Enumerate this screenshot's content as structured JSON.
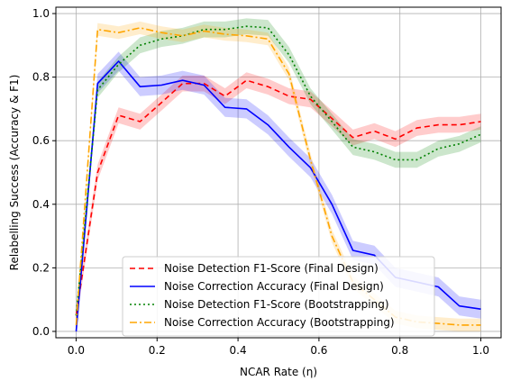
{
  "chart_data": {
    "type": "line",
    "title": "",
    "xlabel": "NCAR Rate (η)",
    "ylabel": "Relabelling Success (Accuracy & F1)",
    "xlim": [
      -0.05,
      1.05
    ],
    "ylim": [
      -0.02,
      1.02
    ],
    "xticks": [
      0.0,
      0.2,
      0.4,
      0.6,
      0.8,
      1.0
    ],
    "xtick_labels": [
      "0.0",
      "0.2",
      "0.4",
      "0.6",
      "0.8",
      "1.0"
    ],
    "yticks": [
      0.0,
      0.2,
      0.4,
      0.6,
      0.8,
      1.0
    ],
    "ytick_labels": [
      "0.0",
      "0.2",
      "0.4",
      "0.6",
      "0.8",
      "1.0"
    ],
    "grid": true,
    "legend_position": "lower-center",
    "x": [
      0.0,
      0.053,
      0.105,
      0.158,
      0.211,
      0.263,
      0.316,
      0.368,
      0.421,
      0.474,
      0.526,
      0.579,
      0.632,
      0.684,
      0.737,
      0.789,
      0.842,
      0.895,
      0.947,
      1.0
    ],
    "series": [
      {
        "name": "Noise Detection F1-Score (Final Design)",
        "color": "#ff0000",
        "dash": "6,4",
        "values": [
          0.05,
          0.5,
          0.68,
          0.66,
          0.72,
          0.78,
          0.78,
          0.74,
          0.79,
          0.77,
          0.74,
          0.73,
          0.67,
          0.61,
          0.63,
          0.605,
          0.64,
          0.65,
          0.65,
          0.66
        ],
        "band": 0.025
      },
      {
        "name": "Noise Correction Accuracy (Final Design)",
        "color": "#0000ff",
        "dash": "",
        "values": [
          0.0,
          0.78,
          0.85,
          0.77,
          0.775,
          0.79,
          0.775,
          0.705,
          0.7,
          0.65,
          0.58,
          0.515,
          0.4,
          0.255,
          0.24,
          0.17,
          0.155,
          0.14,
          0.08,
          0.07
        ],
        "band": 0.03
      },
      {
        "name": "Noise Detection F1-Score (Bootstrapping)",
        "color": "#008000",
        "dash": "2,3",
        "values": [
          0.05,
          0.76,
          0.84,
          0.9,
          0.92,
          0.93,
          0.95,
          0.95,
          0.96,
          0.955,
          0.87,
          0.74,
          0.66,
          0.58,
          0.565,
          0.54,
          0.54,
          0.575,
          0.59,
          0.62
        ],
        "band": 0.025
      },
      {
        "name": "Noise Correction Accuracy (Bootstrapping)",
        "color": "#ffa500",
        "dash": "8,3,2,3",
        "values": [
          0.02,
          0.95,
          0.94,
          0.955,
          0.94,
          0.93,
          0.945,
          0.935,
          0.93,
          0.92,
          0.81,
          0.54,
          0.3,
          0.155,
          0.1,
          0.045,
          0.03,
          0.025,
          0.02,
          0.02
        ],
        "band": 0.02
      }
    ]
  }
}
